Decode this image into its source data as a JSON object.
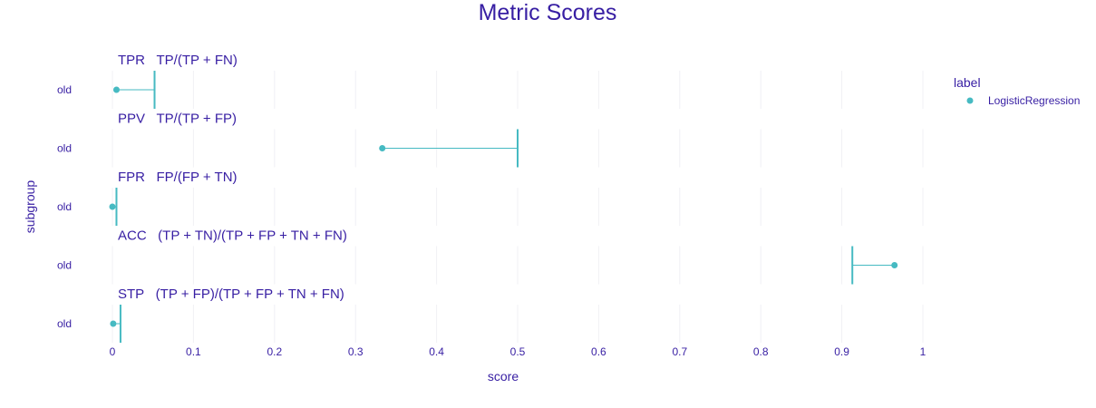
{
  "chart_data": {
    "type": "scatter",
    "title": "Metric Scores",
    "xlabel": "score",
    "ylabel": "subgroup",
    "xlim": [
      0,
      1
    ],
    "x_ticks": [
      "0",
      "0.1",
      "0.2",
      "0.3",
      "0.4",
      "0.5",
      "0.6",
      "0.7",
      "0.8",
      "0.9",
      "1"
    ],
    "legend": {
      "title": "label",
      "position": "top-right",
      "items": [
        {
          "name": "LogisticRegression",
          "color": "#46bac2"
        }
      ]
    },
    "panels": [
      {
        "metric": "TPR",
        "formula": "TP/(TP + FN)",
        "subgroup": "old",
        "score": 0.005,
        "reference": 0.052
      },
      {
        "metric": "PPV",
        "formula": "TP/(TP + FP)",
        "subgroup": "old",
        "score": 0.333,
        "reference": 0.5
      },
      {
        "metric": "FPR",
        "formula": "FP/(FP + TN)",
        "subgroup": "old",
        "score": 0.0,
        "reference": 0.005
      },
      {
        "metric": "ACC",
        "formula": "(TP + TN)/(TP + FP + TN + FN)",
        "subgroup": "old",
        "score": 0.965,
        "reference": 0.913
      },
      {
        "metric": "STP",
        "formula": "(TP + FP)/(TP + FP + TN + FN)",
        "subgroup": "old",
        "score": 0.001,
        "reference": 0.01
      }
    ]
  }
}
